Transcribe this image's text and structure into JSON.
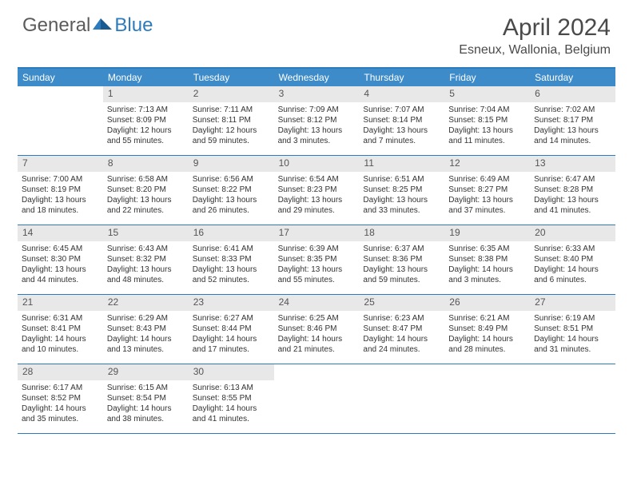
{
  "logo": {
    "text1": "General",
    "text2": "Blue"
  },
  "title": "April 2024",
  "location": "Esneux, Wallonia, Belgium",
  "colors": {
    "header_bg": "#3d8bc9",
    "border": "#2b7bbd",
    "daynum_bg": "#e8e8e8",
    "text": "#333333",
    "logo_gray": "#5b5b5b",
    "logo_blue": "#2b7bbd"
  },
  "weekdays": [
    "Sunday",
    "Monday",
    "Tuesday",
    "Wednesday",
    "Thursday",
    "Friday",
    "Saturday"
  ],
  "weeks": [
    [
      null,
      {
        "n": "1",
        "sr": "Sunrise: 7:13 AM",
        "ss": "Sunset: 8:09 PM",
        "d1": "Daylight: 12 hours",
        "d2": "and 55 minutes."
      },
      {
        "n": "2",
        "sr": "Sunrise: 7:11 AM",
        "ss": "Sunset: 8:11 PM",
        "d1": "Daylight: 12 hours",
        "d2": "and 59 minutes."
      },
      {
        "n": "3",
        "sr": "Sunrise: 7:09 AM",
        "ss": "Sunset: 8:12 PM",
        "d1": "Daylight: 13 hours",
        "d2": "and 3 minutes."
      },
      {
        "n": "4",
        "sr": "Sunrise: 7:07 AM",
        "ss": "Sunset: 8:14 PM",
        "d1": "Daylight: 13 hours",
        "d2": "and 7 minutes."
      },
      {
        "n": "5",
        "sr": "Sunrise: 7:04 AM",
        "ss": "Sunset: 8:15 PM",
        "d1": "Daylight: 13 hours",
        "d2": "and 11 minutes."
      },
      {
        "n": "6",
        "sr": "Sunrise: 7:02 AM",
        "ss": "Sunset: 8:17 PM",
        "d1": "Daylight: 13 hours",
        "d2": "and 14 minutes."
      }
    ],
    [
      {
        "n": "7",
        "sr": "Sunrise: 7:00 AM",
        "ss": "Sunset: 8:19 PM",
        "d1": "Daylight: 13 hours",
        "d2": "and 18 minutes."
      },
      {
        "n": "8",
        "sr": "Sunrise: 6:58 AM",
        "ss": "Sunset: 8:20 PM",
        "d1": "Daylight: 13 hours",
        "d2": "and 22 minutes."
      },
      {
        "n": "9",
        "sr": "Sunrise: 6:56 AM",
        "ss": "Sunset: 8:22 PM",
        "d1": "Daylight: 13 hours",
        "d2": "and 26 minutes."
      },
      {
        "n": "10",
        "sr": "Sunrise: 6:54 AM",
        "ss": "Sunset: 8:23 PM",
        "d1": "Daylight: 13 hours",
        "d2": "and 29 minutes."
      },
      {
        "n": "11",
        "sr": "Sunrise: 6:51 AM",
        "ss": "Sunset: 8:25 PM",
        "d1": "Daylight: 13 hours",
        "d2": "and 33 minutes."
      },
      {
        "n": "12",
        "sr": "Sunrise: 6:49 AM",
        "ss": "Sunset: 8:27 PM",
        "d1": "Daylight: 13 hours",
        "d2": "and 37 minutes."
      },
      {
        "n": "13",
        "sr": "Sunrise: 6:47 AM",
        "ss": "Sunset: 8:28 PM",
        "d1": "Daylight: 13 hours",
        "d2": "and 41 minutes."
      }
    ],
    [
      {
        "n": "14",
        "sr": "Sunrise: 6:45 AM",
        "ss": "Sunset: 8:30 PM",
        "d1": "Daylight: 13 hours",
        "d2": "and 44 minutes."
      },
      {
        "n": "15",
        "sr": "Sunrise: 6:43 AM",
        "ss": "Sunset: 8:32 PM",
        "d1": "Daylight: 13 hours",
        "d2": "and 48 minutes."
      },
      {
        "n": "16",
        "sr": "Sunrise: 6:41 AM",
        "ss": "Sunset: 8:33 PM",
        "d1": "Daylight: 13 hours",
        "d2": "and 52 minutes."
      },
      {
        "n": "17",
        "sr": "Sunrise: 6:39 AM",
        "ss": "Sunset: 8:35 PM",
        "d1": "Daylight: 13 hours",
        "d2": "and 55 minutes."
      },
      {
        "n": "18",
        "sr": "Sunrise: 6:37 AM",
        "ss": "Sunset: 8:36 PM",
        "d1": "Daylight: 13 hours",
        "d2": "and 59 minutes."
      },
      {
        "n": "19",
        "sr": "Sunrise: 6:35 AM",
        "ss": "Sunset: 8:38 PM",
        "d1": "Daylight: 14 hours",
        "d2": "and 3 minutes."
      },
      {
        "n": "20",
        "sr": "Sunrise: 6:33 AM",
        "ss": "Sunset: 8:40 PM",
        "d1": "Daylight: 14 hours",
        "d2": "and 6 minutes."
      }
    ],
    [
      {
        "n": "21",
        "sr": "Sunrise: 6:31 AM",
        "ss": "Sunset: 8:41 PM",
        "d1": "Daylight: 14 hours",
        "d2": "and 10 minutes."
      },
      {
        "n": "22",
        "sr": "Sunrise: 6:29 AM",
        "ss": "Sunset: 8:43 PM",
        "d1": "Daylight: 14 hours",
        "d2": "and 13 minutes."
      },
      {
        "n": "23",
        "sr": "Sunrise: 6:27 AM",
        "ss": "Sunset: 8:44 PM",
        "d1": "Daylight: 14 hours",
        "d2": "and 17 minutes."
      },
      {
        "n": "24",
        "sr": "Sunrise: 6:25 AM",
        "ss": "Sunset: 8:46 PM",
        "d1": "Daylight: 14 hours",
        "d2": "and 21 minutes."
      },
      {
        "n": "25",
        "sr": "Sunrise: 6:23 AM",
        "ss": "Sunset: 8:47 PM",
        "d1": "Daylight: 14 hours",
        "d2": "and 24 minutes."
      },
      {
        "n": "26",
        "sr": "Sunrise: 6:21 AM",
        "ss": "Sunset: 8:49 PM",
        "d1": "Daylight: 14 hours",
        "d2": "and 28 minutes."
      },
      {
        "n": "27",
        "sr": "Sunrise: 6:19 AM",
        "ss": "Sunset: 8:51 PM",
        "d1": "Daylight: 14 hours",
        "d2": "and 31 minutes."
      }
    ],
    [
      {
        "n": "28",
        "sr": "Sunrise: 6:17 AM",
        "ss": "Sunset: 8:52 PM",
        "d1": "Daylight: 14 hours",
        "d2": "and 35 minutes."
      },
      {
        "n": "29",
        "sr": "Sunrise: 6:15 AM",
        "ss": "Sunset: 8:54 PM",
        "d1": "Daylight: 14 hours",
        "d2": "and 38 minutes."
      },
      {
        "n": "30",
        "sr": "Sunrise: 6:13 AM",
        "ss": "Sunset: 8:55 PM",
        "d1": "Daylight: 14 hours",
        "d2": "and 41 minutes."
      },
      null,
      null,
      null,
      null
    ]
  ]
}
